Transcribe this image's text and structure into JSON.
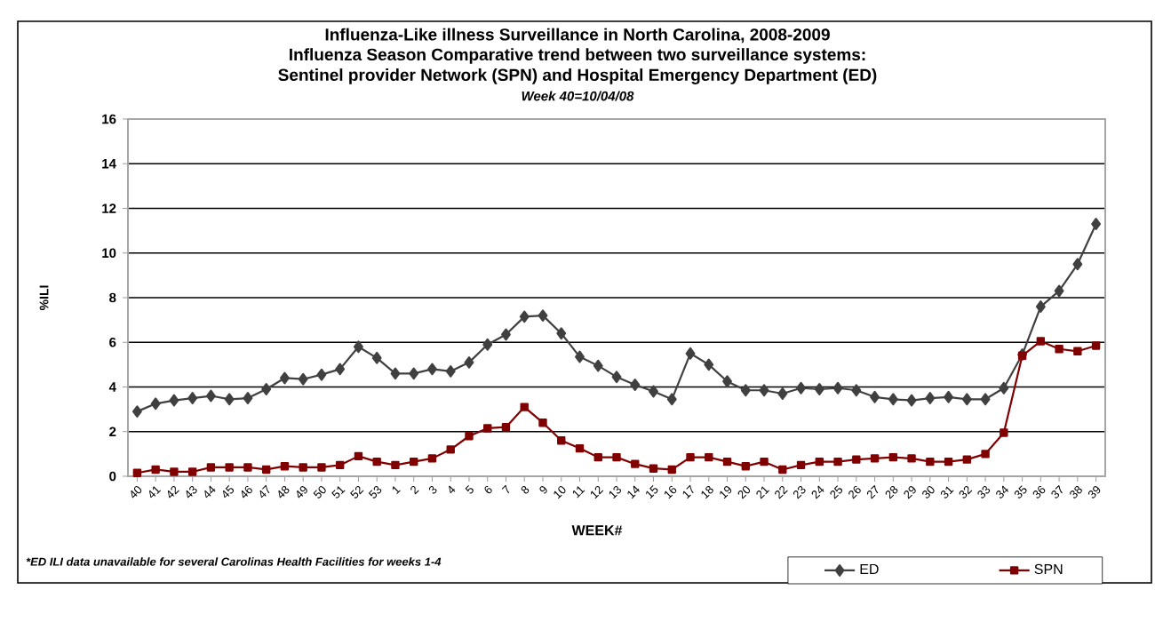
{
  "chart_data": {
    "type": "line",
    "title": "Influenza-Like illness Surveillance in North Carolina, 2008-2009",
    "subtitle": "Influenza Season Comparative trend between two surveillance systems:",
    "annotations": [
      "Sentinel provider Network (SPN) and Hospital Emergency Department (ED)",
      "Week 40=10/04/08",
      "*ED ILI data unavailable for several Carolinas Health Facilities for weeks 1-4"
    ],
    "xlabel": "WEEK#",
    "ylabel": "%ILI",
    "categories": [
      "40",
      "41",
      "42",
      "43",
      "44",
      "45",
      "46",
      "47",
      "48",
      "49",
      "50",
      "51",
      "52",
      "53",
      "1",
      "2",
      "3",
      "4",
      "5",
      "6",
      "7",
      "8",
      "9",
      "10",
      "11",
      "12",
      "13",
      "14",
      "15",
      "16",
      "17",
      "18",
      "19",
      "20",
      "21",
      "22",
      "23",
      "24",
      "25",
      "26",
      "27",
      "28",
      "29",
      "30",
      "31",
      "32",
      "33",
      "34",
      "35",
      "36",
      "37",
      "38",
      "39"
    ],
    "series": [
      {
        "name": "ED",
        "color": "#404040",
        "marker": "diamond",
        "values": [
          2.9,
          3.25,
          3.4,
          3.5,
          3.6,
          3.45,
          3.5,
          3.9,
          4.4,
          4.35,
          4.55,
          4.8,
          5.8,
          5.3,
          4.6,
          4.6,
          4.8,
          4.7,
          5.1,
          5.9,
          6.35,
          7.15,
          7.2,
          6.4,
          5.35,
          4.95,
          4.45,
          4.1,
          3.8,
          3.45,
          5.5,
          5.0,
          4.25,
          3.85,
          3.85,
          3.7,
          3.95,
          3.9,
          3.95,
          3.85,
          3.55,
          3.45,
          3.4,
          3.5,
          3.55,
          3.45,
          3.45,
          3.95,
          5.45,
          7.6,
          8.3,
          9.5,
          11.3
        ]
      },
      {
        "name": "SPN",
        "color": "#800000",
        "marker": "square",
        "values": [
          0.15,
          0.3,
          0.2,
          0.2,
          0.4,
          0.4,
          0.4,
          0.3,
          0.45,
          0.4,
          0.4,
          0.5,
          0.9,
          0.65,
          0.5,
          0.65,
          0.8,
          1.2,
          1.8,
          2.15,
          2.2,
          3.1,
          2.4,
          1.6,
          1.25,
          0.85,
          0.85,
          0.55,
          0.35,
          0.3,
          0.85,
          0.85,
          0.65,
          0.45,
          0.65,
          0.3,
          0.5,
          0.65,
          0.65,
          0.75,
          0.8,
          0.85,
          0.8,
          0.65,
          0.65,
          0.75,
          1.0,
          1.95,
          5.4,
          6.05,
          5.7,
          5.6,
          5.85
        ]
      }
    ],
    "ylim": [
      0,
      16
    ],
    "yticks": [
      0,
      2,
      4,
      6,
      8,
      10,
      12,
      14,
      16
    ],
    "grid": "y",
    "legend": "bottom right",
    "line_style": "solid"
  }
}
